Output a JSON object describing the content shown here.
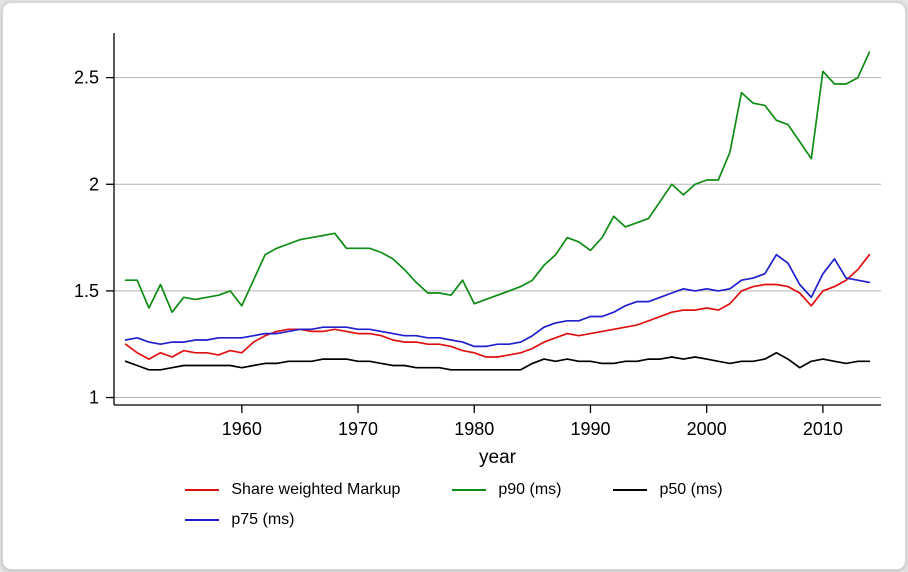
{
  "chart_data": {
    "type": "line",
    "title": "",
    "xlabel": "year",
    "ylabel": "",
    "grid": "horizontal",
    "legend_position": "bottom",
    "x_domain": [
      1949,
      2015
    ],
    "y_domain": [
      0.965,
      2.7
    ],
    "y_ticks": [
      1,
      1.5,
      2,
      2.5
    ],
    "y_tick_labels": [
      "1",
      "1.5",
      "2",
      "2.5"
    ],
    "x_ticks": [
      1960,
      1970,
      1980,
      1990,
      2000,
      2010
    ],
    "x": [
      1950,
      1951,
      1952,
      1953,
      1954,
      1955,
      1956,
      1957,
      1958,
      1959,
      1960,
      1961,
      1962,
      1963,
      1964,
      1965,
      1966,
      1967,
      1968,
      1969,
      1970,
      1971,
      1972,
      1973,
      1974,
      1975,
      1976,
      1977,
      1978,
      1979,
      1980,
      1981,
      1982,
      1983,
      1984,
      1985,
      1986,
      1987,
      1988,
      1989,
      1990,
      1991,
      1992,
      1993,
      1994,
      1995,
      1996,
      1997,
      1998,
      1999,
      2000,
      2001,
      2002,
      2003,
      2004,
      2005,
      2006,
      2007,
      2008,
      2009,
      2010,
      2011,
      2012,
      2013,
      2014
    ],
    "series": [
      {
        "name": "Share weighted Markup",
        "color": "#e01010",
        "values": [
          1.25,
          1.21,
          1.18,
          1.21,
          1.19,
          1.22,
          1.21,
          1.21,
          1.2,
          1.22,
          1.21,
          1.26,
          1.29,
          1.31,
          1.32,
          1.32,
          1.31,
          1.31,
          1.32,
          1.31,
          1.3,
          1.3,
          1.29,
          1.27,
          1.26,
          1.26,
          1.25,
          1.25,
          1.24,
          1.22,
          1.21,
          1.19,
          1.19,
          1.2,
          1.21,
          1.23,
          1.26,
          1.28,
          1.3,
          1.29,
          1.3,
          1.31,
          1.32,
          1.33,
          1.34,
          1.36,
          1.38,
          1.4,
          1.41,
          1.41,
          1.42,
          1.41,
          1.44,
          1.5,
          1.52,
          1.53,
          1.53,
          1.52,
          1.49,
          1.43,
          1.5,
          1.52,
          1.55,
          1.6,
          1.67
        ]
      },
      {
        "name": "p90 (ms)",
        "color": "#0e8c14",
        "values": [
          1.55,
          1.55,
          1.42,
          1.53,
          1.4,
          1.47,
          1.46,
          1.47,
          1.48,
          1.5,
          1.43,
          1.55,
          1.67,
          1.7,
          1.72,
          1.74,
          1.75,
          1.76,
          1.77,
          1.7,
          1.7,
          1.7,
          1.68,
          1.65,
          1.6,
          1.54,
          1.49,
          1.49,
          1.48,
          1.55,
          1.44,
          1.46,
          1.48,
          1.5,
          1.52,
          1.55,
          1.62,
          1.67,
          1.75,
          1.73,
          1.69,
          1.75,
          1.85,
          1.8,
          1.82,
          1.84,
          1.92,
          2.0,
          1.95,
          2.0,
          2.02,
          2.02,
          2.15,
          2.43,
          2.38,
          2.37,
          2.3,
          2.28,
          2.2,
          2.12,
          2.53,
          2.47,
          2.47,
          2.5,
          2.62
        ]
      },
      {
        "name": "p50 (ms)",
        "color": "#000000",
        "values": [
          1.17,
          1.15,
          1.13,
          1.13,
          1.14,
          1.15,
          1.15,
          1.15,
          1.15,
          1.15,
          1.14,
          1.15,
          1.16,
          1.16,
          1.17,
          1.17,
          1.17,
          1.18,
          1.18,
          1.18,
          1.17,
          1.17,
          1.16,
          1.15,
          1.15,
          1.14,
          1.14,
          1.14,
          1.13,
          1.13,
          1.13,
          1.13,
          1.13,
          1.13,
          1.13,
          1.16,
          1.18,
          1.17,
          1.18,
          1.17,
          1.17,
          1.16,
          1.16,
          1.17,
          1.17,
          1.18,
          1.18,
          1.19,
          1.18,
          1.19,
          1.18,
          1.17,
          1.16,
          1.17,
          1.17,
          1.18,
          1.21,
          1.18,
          1.14,
          1.17,
          1.18,
          1.17,
          1.16,
          1.17,
          1.17
        ]
      },
      {
        "name": "p75 (ms)",
        "color": "#1f1fce",
        "values": [
          1.27,
          1.28,
          1.26,
          1.25,
          1.26,
          1.26,
          1.27,
          1.27,
          1.28,
          1.28,
          1.28,
          1.29,
          1.3,
          1.3,
          1.31,
          1.32,
          1.32,
          1.33,
          1.33,
          1.33,
          1.32,
          1.32,
          1.31,
          1.3,
          1.29,
          1.29,
          1.28,
          1.28,
          1.27,
          1.26,
          1.24,
          1.24,
          1.25,
          1.25,
          1.26,
          1.29,
          1.33,
          1.35,
          1.36,
          1.36,
          1.38,
          1.38,
          1.4,
          1.43,
          1.45,
          1.45,
          1.47,
          1.49,
          1.51,
          1.5,
          1.51,
          1.5,
          1.51,
          1.55,
          1.56,
          1.58,
          1.67,
          1.63,
          1.53,
          1.47,
          1.58,
          1.65,
          1.56,
          1.55,
          1.54
        ]
      }
    ],
    "style": {
      "gridline_color": "#b3b3b3",
      "axis_color": "#000000",
      "background": "#ffffff"
    }
  }
}
